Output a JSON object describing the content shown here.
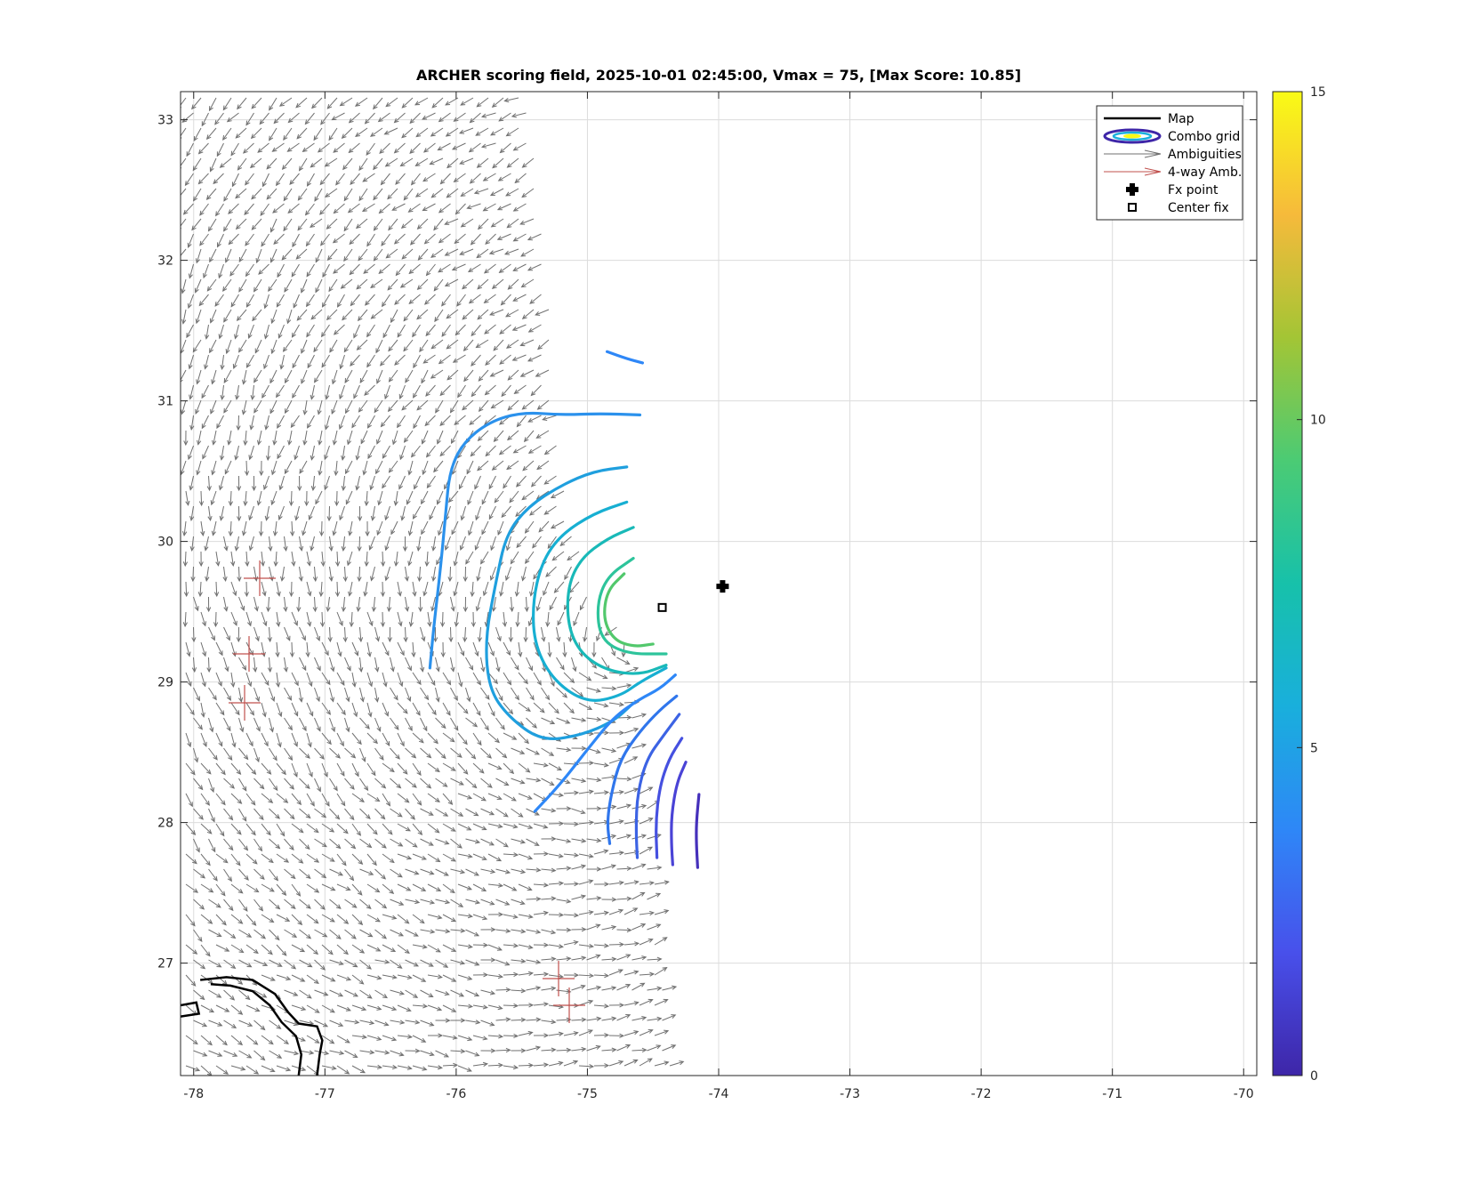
{
  "chart_data": {
    "type": "contour",
    "title": "ARCHER scoring field, 2025-10-01 02:45:00, Vmax = 75, [Max Score: 10.85]",
    "xlim": [
      -78.1,
      -69.9
    ],
    "ylim": [
      26.2,
      33.2
    ],
    "xticks": [
      -78,
      -77,
      -76,
      -75,
      -74,
      -73,
      -72,
      -71,
      -70
    ],
    "yticks": [
      27,
      28,
      29,
      30,
      31,
      32,
      33
    ],
    "grid": true,
    "legend_position": "top-right",
    "legend": [
      {
        "label": "Map",
        "kind": "line"
      },
      {
        "label": "Combo grid",
        "kind": "contour"
      },
      {
        "label": "Ambiguities",
        "kind": "arrow-gray"
      },
      {
        "label": "4-way Amb.",
        "kind": "arrow-red"
      },
      {
        "label": "Fx point",
        "kind": "plus-marker"
      },
      {
        "label": "Center fix",
        "kind": "square-marker"
      }
    ],
    "colorbar": {
      "min": 0,
      "max": 15,
      "ticks": [
        0,
        5,
        10,
        15
      ],
      "colormap": [
        "#3e26a8",
        "#4850eb",
        "#2e87f7",
        "#19afdc",
        "#17c1aa",
        "#4bcb74",
        "#a3c535",
        "#f6ba3b",
        "#f9fb15"
      ]
    },
    "points": {
      "fx_point": {
        "lon": -73.97,
        "lat": 29.68
      },
      "center_fix": {
        "lon": -74.43,
        "lat": 29.53
      }
    },
    "contours": [
      {
        "level": 4.5,
        "color": "#2e87f7",
        "points": [
          [
            -74.85,
            31.35
          ],
          [
            -74.7,
            31.3
          ],
          [
            -74.58,
            31.27
          ]
        ]
      },
      {
        "level": 5.0,
        "color": "#2b91ec",
        "points": [
          [
            -74.6,
            30.9
          ],
          [
            -74.9,
            30.91
          ],
          [
            -75.2,
            30.9
          ],
          [
            -75.5,
            30.92
          ],
          [
            -75.75,
            30.85
          ],
          [
            -75.95,
            30.7
          ],
          [
            -76.05,
            30.5
          ],
          [
            -76.08,
            30.2
          ],
          [
            -76.12,
            29.8
          ],
          [
            -76.17,
            29.4
          ],
          [
            -76.2,
            29.1
          ]
        ]
      },
      {
        "level": 5.6,
        "color": "#1f9fde",
        "points": [
          [
            -74.7,
            30.53
          ],
          [
            -74.95,
            30.5
          ],
          [
            -75.2,
            30.4
          ],
          [
            -75.45,
            30.25
          ],
          [
            -75.62,
            30.05
          ],
          [
            -75.7,
            29.7
          ],
          [
            -75.78,
            29.3
          ],
          [
            -75.75,
            28.95
          ],
          [
            -75.6,
            28.75
          ],
          [
            -75.35,
            28.58
          ],
          [
            -75.05,
            28.62
          ],
          [
            -74.8,
            28.72
          ],
          [
            -74.65,
            28.85
          ]
        ]
      },
      {
        "level": 6.3,
        "color": "#17afd2",
        "points": [
          [
            -74.7,
            30.28
          ],
          [
            -74.95,
            30.2
          ],
          [
            -75.2,
            30.05
          ],
          [
            -75.35,
            29.85
          ],
          [
            -75.42,
            29.55
          ],
          [
            -75.4,
            29.25
          ],
          [
            -75.25,
            29.0
          ],
          [
            -75.0,
            28.85
          ],
          [
            -74.75,
            28.9
          ],
          [
            -74.6,
            29.0
          ],
          [
            -74.4,
            29.1
          ]
        ]
      },
      {
        "level": 7.0,
        "color": "#19b9b8",
        "points": [
          [
            -74.65,
            30.1
          ],
          [
            -74.85,
            30.02
          ],
          [
            -75.05,
            29.88
          ],
          [
            -75.15,
            29.68
          ],
          [
            -75.15,
            29.4
          ],
          [
            -75.05,
            29.2
          ],
          [
            -74.85,
            29.08
          ],
          [
            -74.6,
            29.05
          ],
          [
            -74.4,
            29.12
          ]
        ]
      },
      {
        "level": 7.8,
        "color": "#2dc49b",
        "points": [
          [
            -74.65,
            29.88
          ],
          [
            -74.85,
            29.75
          ],
          [
            -74.93,
            29.55
          ],
          [
            -74.9,
            29.3
          ],
          [
            -74.7,
            29.2
          ],
          [
            -74.4,
            29.2
          ]
        ]
      },
      {
        "level": 8.6,
        "color": "#52c86c",
        "points": [
          [
            -74.72,
            29.77
          ],
          [
            -74.85,
            29.65
          ],
          [
            -74.88,
            29.45
          ],
          [
            -74.8,
            29.3
          ],
          [
            -74.65,
            29.25
          ],
          [
            -74.5,
            29.27
          ]
        ]
      },
      {
        "level": 4.2,
        "color": "#2e87f7",
        "points": [
          [
            -74.33,
            29.05
          ],
          [
            -74.45,
            28.95
          ],
          [
            -74.6,
            28.88
          ],
          [
            -74.8,
            28.75
          ],
          [
            -75.0,
            28.52
          ],
          [
            -75.2,
            28.28
          ],
          [
            -75.4,
            28.08
          ]
        ]
      },
      {
        "level": 3.8,
        "color": "#3076ec",
        "points": [
          [
            -74.32,
            28.9
          ],
          [
            -74.45,
            28.8
          ],
          [
            -74.6,
            28.65
          ],
          [
            -74.75,
            28.45
          ],
          [
            -74.82,
            28.2
          ],
          [
            -74.85,
            28.0
          ],
          [
            -74.83,
            27.85
          ]
        ]
      },
      {
        "level": 3.2,
        "color": "#3c63e4",
        "points": [
          [
            -74.3,
            28.77
          ],
          [
            -74.42,
            28.62
          ],
          [
            -74.55,
            28.45
          ],
          [
            -74.62,
            28.2
          ],
          [
            -74.63,
            27.95
          ],
          [
            -74.62,
            27.75
          ]
        ]
      },
      {
        "level": 2.6,
        "color": "#4550e0",
        "points": [
          [
            -74.28,
            28.6
          ],
          [
            -74.38,
            28.45
          ],
          [
            -74.45,
            28.25
          ],
          [
            -74.48,
            28.0
          ],
          [
            -74.47,
            27.75
          ]
        ]
      },
      {
        "level": 2.0,
        "color": "#4a43d6",
        "points": [
          [
            -74.25,
            28.43
          ],
          [
            -74.32,
            28.28
          ],
          [
            -74.36,
            28.05
          ],
          [
            -74.36,
            27.85
          ],
          [
            -74.35,
            27.7
          ]
        ]
      },
      {
        "level": 1.2,
        "color": "#4530bb",
        "points": [
          [
            -74.15,
            28.2
          ],
          [
            -74.17,
            28.0
          ],
          [
            -74.17,
            27.85
          ],
          [
            -74.16,
            27.68
          ]
        ]
      }
    ],
    "coastlines": [
      [
        [
          -77.95,
          26.88
        ],
        [
          -77.75,
          26.9
        ],
        [
          -77.55,
          26.88
        ],
        [
          -77.38,
          26.78
        ],
        [
          -77.28,
          26.65
        ],
        [
          -77.2,
          26.57
        ],
        [
          -77.06,
          26.55
        ],
        [
          -77.02,
          26.45
        ],
        [
          -77.04,
          26.35
        ],
        [
          -77.06,
          26.2
        ]
      ],
      [
        [
          -78.1,
          26.7
        ],
        [
          -77.98,
          26.72
        ],
        [
          -77.96,
          26.64
        ],
        [
          -78.1,
          26.62
        ]
      ],
      [
        [
          -77.87,
          26.85
        ],
        [
          -77.72,
          26.84
        ],
        [
          -77.55,
          26.8
        ],
        [
          -77.42,
          26.7
        ],
        [
          -77.33,
          26.58
        ],
        [
          -77.22,
          26.48
        ],
        [
          -77.18,
          26.35
        ],
        [
          -77.2,
          26.2
        ]
      ]
    ]
  }
}
